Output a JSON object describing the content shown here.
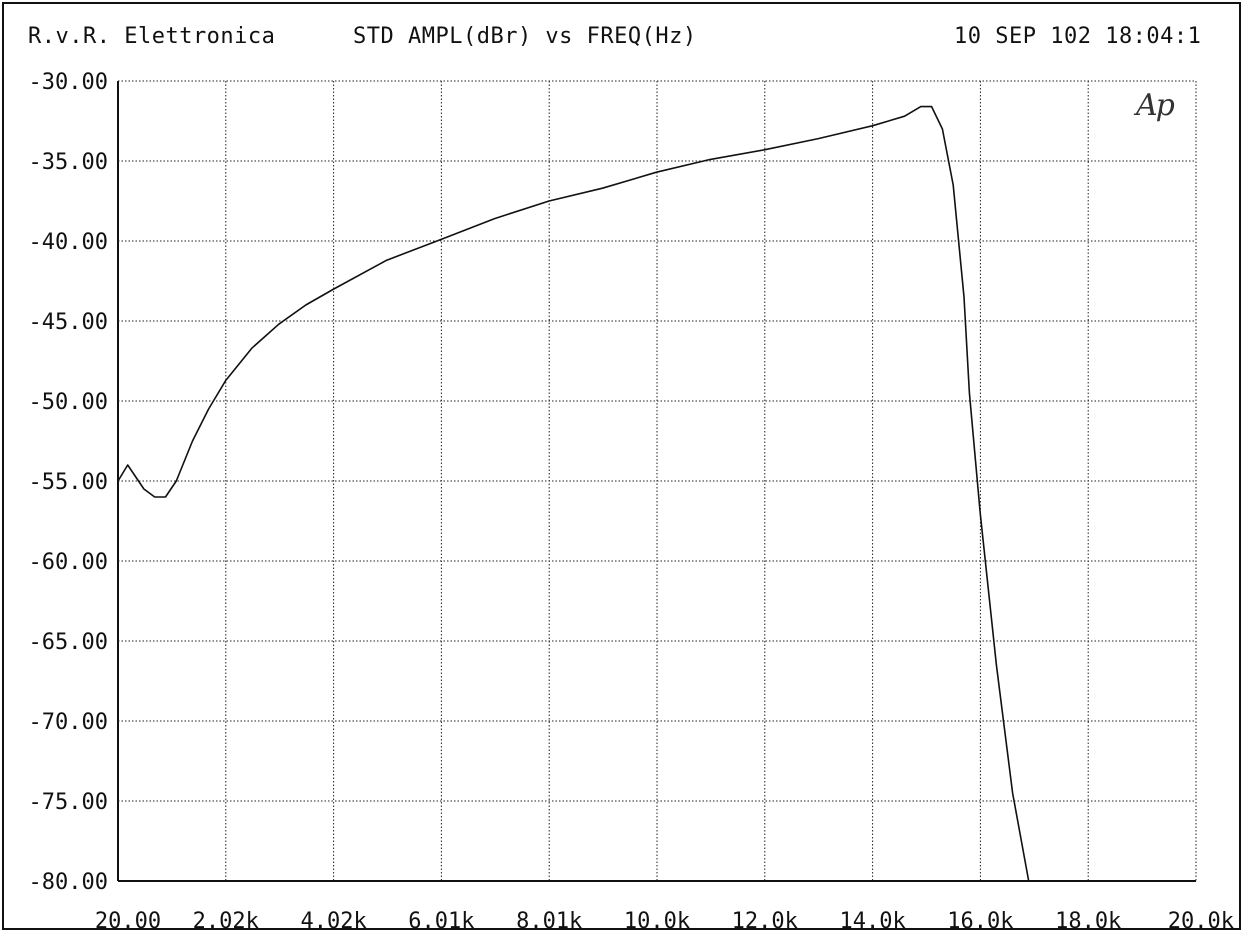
{
  "header": {
    "company": "R.v.R. Elettronica",
    "title": "STD AMPL(dBr) vs FREQ(Hz)",
    "timestamp": "10 SEP 102 18:04:1"
  },
  "logo": "Ap",
  "chart_data": {
    "type": "line",
    "title": "STD AMPL(dBr) vs FREQ(Hz)",
    "xlabel": "FREQ(Hz)",
    "ylabel": "STD AMPL(dBr)",
    "xlim": [
      20,
      20000
    ],
    "ylim": [
      -80,
      -30
    ],
    "grid": true,
    "x_tick_labels": [
      "20.00",
      "2.02k",
      "4.02k",
      "6.01k",
      "8.01k",
      "10.0k",
      "12.0k",
      "14.0k",
      "16.0k",
      "18.0k",
      "20.0k"
    ],
    "y_tick_labels": [
      "-30.00",
      "-35.00",
      "-40.00",
      "-45.00",
      "-50.00",
      "-55.00",
      "-60.00",
      "-65.00",
      "-70.00",
      "-75.00",
      "-80.00"
    ],
    "series": [
      {
        "x": [
          20,
          200,
          500,
          700,
          900,
          1100,
          1400,
          1700,
          2020,
          2500,
          3000,
          3500,
          4020,
          5000,
          6010,
          7000,
          8010,
          9000,
          10000,
          11000,
          12000,
          13000,
          14000,
          14600,
          14900,
          15100,
          15300,
          15500,
          15700,
          15800,
          16000,
          16300,
          16600,
          16900,
          17050
        ],
        "y": [
          -55,
          -54,
          -55.5,
          -56,
          -56,
          -55,
          -52.5,
          -50.5,
          -48.7,
          -46.7,
          -45.2,
          -44,
          -43,
          -41.2,
          -39.9,
          -38.6,
          -37.5,
          -36.7,
          -35.7,
          -34.9,
          -34.3,
          -33.6,
          -32.8,
          -32.2,
          -31.6,
          -31.6,
          -33,
          -36.5,
          -43.5,
          -49.5,
          -57,
          -66.5,
          -74.5,
          -80,
          -80
        ]
      }
    ]
  }
}
